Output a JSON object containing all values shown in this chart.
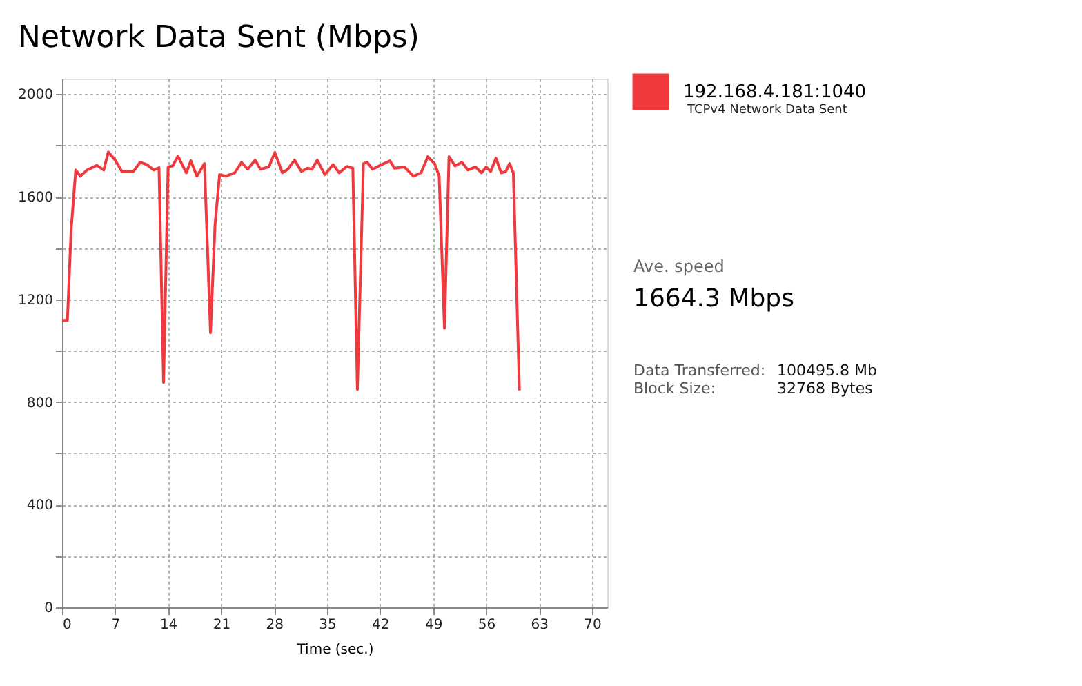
{
  "chart_data": {
    "type": "line",
    "title": "Network Data Sent (Mbps)",
    "xlabel": "Time (sec.)",
    "x": [
      0,
      0.7,
      1.2,
      1.8,
      2.4,
      3.3,
      4.6,
      5.5,
      6.1,
      7.0,
      7.9,
      9.4,
      10.3,
      11.2,
      12.1,
      12.8,
      13.4,
      14.0,
      14.6,
      15.3,
      16.4,
      17.0,
      17.8,
      18.8,
      19.6,
      20.2,
      20.8,
      21.6,
      22.8,
      23.7,
      24.5,
      25.5,
      26.2,
      27.3,
      28.1,
      29.1,
      29.8,
      30.7,
      31.6,
      32.4,
      33.0,
      33.7,
      34.7,
      35.8,
      36.6,
      37.6,
      38.4,
      39.0,
      39.8,
      40.3,
      41.0,
      42.2,
      43.3,
      43.9,
      45.2,
      46.4,
      47.4,
      48.3,
      49.2,
      49.8,
      50.5,
      51.1,
      51.9,
      52.8,
      53.6,
      54.6,
      55.4,
      56.0,
      56.6,
      57.3,
      58.0,
      58.6,
      59.1,
      59.6,
      60.4
    ],
    "series": [
      {
        "name": "192.168.4.181:1040",
        "color": "#f0393d",
        "values": [
          1118,
          1118,
          1474,
          1704,
          1680,
          1704,
          1722,
          1704,
          1774,
          1743,
          1698,
          1698,
          1734,
          1725,
          1704,
          1713,
          876,
          1716,
          1720,
          1758,
          1693,
          1740,
          1680,
          1729,
          1070,
          1492,
          1686,
          1680,
          1693,
          1734,
          1707,
          1743,
          1707,
          1716,
          1772,
          1693,
          1707,
          1743,
          1698,
          1711,
          1707,
          1743,
          1686,
          1725,
          1693,
          1718,
          1711,
          849,
          1729,
          1734,
          1707,
          1725,
          1740,
          1711,
          1716,
          1680,
          1693,
          1756,
          1729,
          1680,
          1088,
          1756,
          1720,
          1734,
          1704,
          1716,
          1693,
          1716,
          1698,
          1750,
          1693,
          1698,
          1729,
          1693,
          845
        ]
      }
    ],
    "xlim": [
      0,
      72
    ],
    "xticks": [
      0,
      7,
      14,
      21,
      28,
      35,
      42,
      49,
      56,
      63,
      70
    ],
    "ylim": [
      0,
      2060
    ],
    "yticks": [
      0,
      {
        "value": 200,
        "label": null
      },
      400,
      {
        "value": 600,
        "label": null
      },
      800,
      {
        "value": 1000,
        "label": null
      },
      1200,
      {
        "value": 1400,
        "label": null
      },
      1600,
      {
        "value": 1800,
        "label": null
      },
      2000
    ],
    "grid": true,
    "legend": "top right",
    "marker": "none",
    "line_style": "solid",
    "annotations": [
      "TCPv4 Network Data Sent",
      "Ave. speed",
      "1664.3 Mbps",
      "Data Transferred:",
      "100495.8 Mb",
      "Block Size:",
      "32768 Bytes"
    ]
  }
}
